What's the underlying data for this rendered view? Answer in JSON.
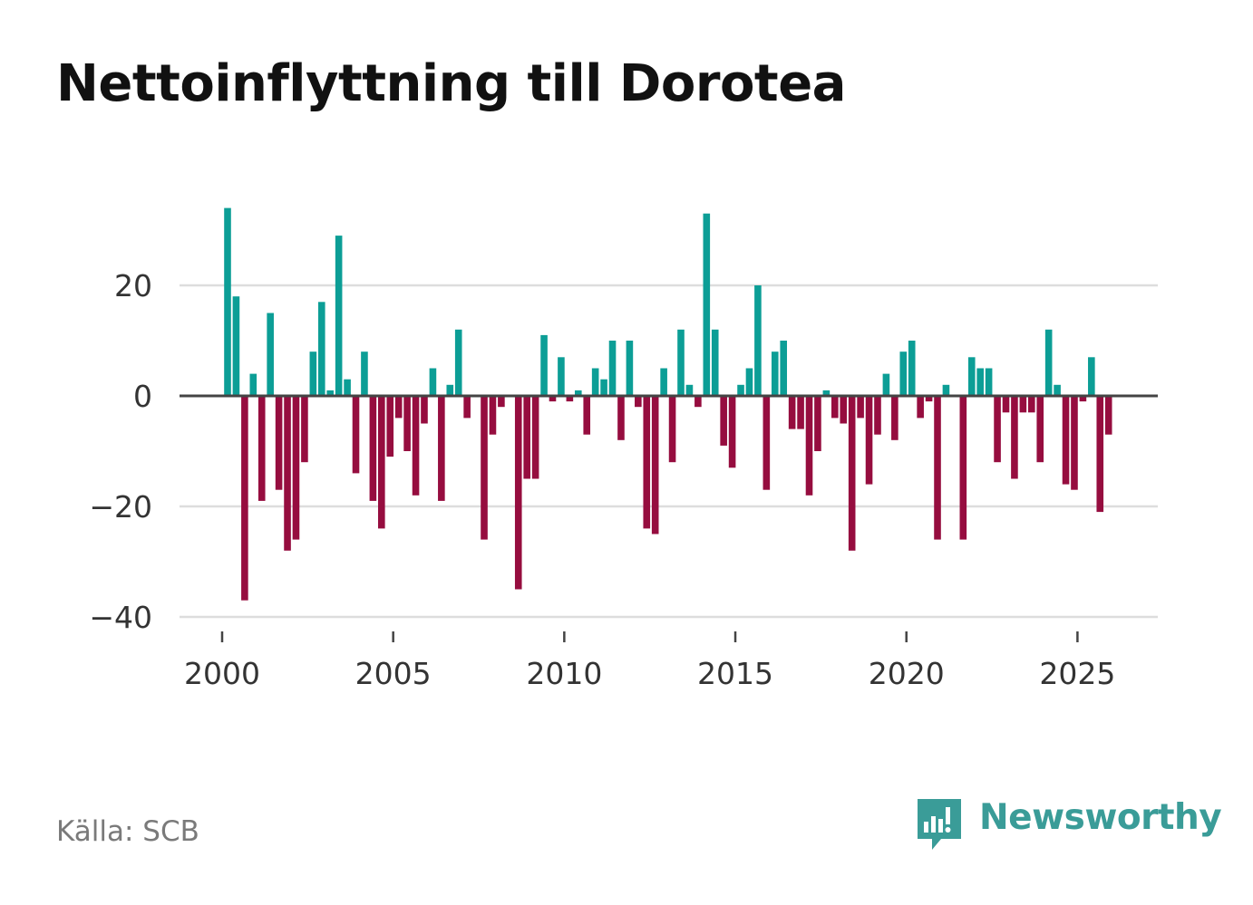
{
  "title": "Nettoinflyttning till Dorotea",
  "source": "Källa: SCB",
  "brand": {
    "name": "Newsworthy",
    "icon": "newsworthy-logo-icon"
  },
  "colors": {
    "positive": "#0c9e96",
    "negative": "#960d3f",
    "axis": "#444444",
    "grid": "#dddddd",
    "brand": "#3a9c98"
  },
  "chart_data": {
    "type": "bar",
    "title": "Nettoinflyttning till Dorotea",
    "xlabel": "",
    "ylabel": "",
    "ylim": [
      -40,
      35
    ],
    "xlim": [
      1999.75,
      2027.5
    ],
    "y_ticks": [
      20,
      0,
      -20,
      -40
    ],
    "y_tick_labels": [
      "20",
      "0",
      "−20",
      "−40"
    ],
    "x_ticks": [
      2000,
      2005,
      2010,
      2015,
      2020,
      2025
    ],
    "x_tick_labels": [
      "2000",
      "2005",
      "2010",
      "2015",
      "2020",
      "2025"
    ],
    "period": "quarter",
    "start": 2000.0,
    "step": 0.25,
    "values": [
      34,
      18,
      -37,
      4,
      -19,
      15,
      -17,
      -28,
      -26,
      -12,
      8,
      17,
      1,
      29,
      3,
      -14,
      8,
      -19,
      -24,
      -11,
      -4,
      -10,
      -18,
      -5,
      5,
      -19,
      2,
      12,
      -4,
      0,
      -26,
      -7,
      -2,
      0,
      -35,
      -15,
      -15,
      11,
      -1,
      7,
      -1,
      1,
      -7,
      5,
      3,
      10,
      -8,
      10,
      -2,
      -24,
      -25,
      5,
      -12,
      12,
      2,
      -2,
      33,
      12,
      -9,
      -13,
      2,
      5,
      20,
      -17,
      8,
      10,
      -6,
      -6,
      -18,
      -10,
      1,
      -4,
      -5,
      -28,
      -4,
      -16,
      -7,
      4,
      -8,
      8,
      10,
      -4,
      -1,
      -26,
      2,
      0,
      -26,
      7,
      5,
      5,
      -12,
      -3,
      -15,
      -3,
      -3,
      -12,
      12,
      2,
      -16,
      -17,
      -1,
      7,
      -21,
      -7
    ]
  }
}
